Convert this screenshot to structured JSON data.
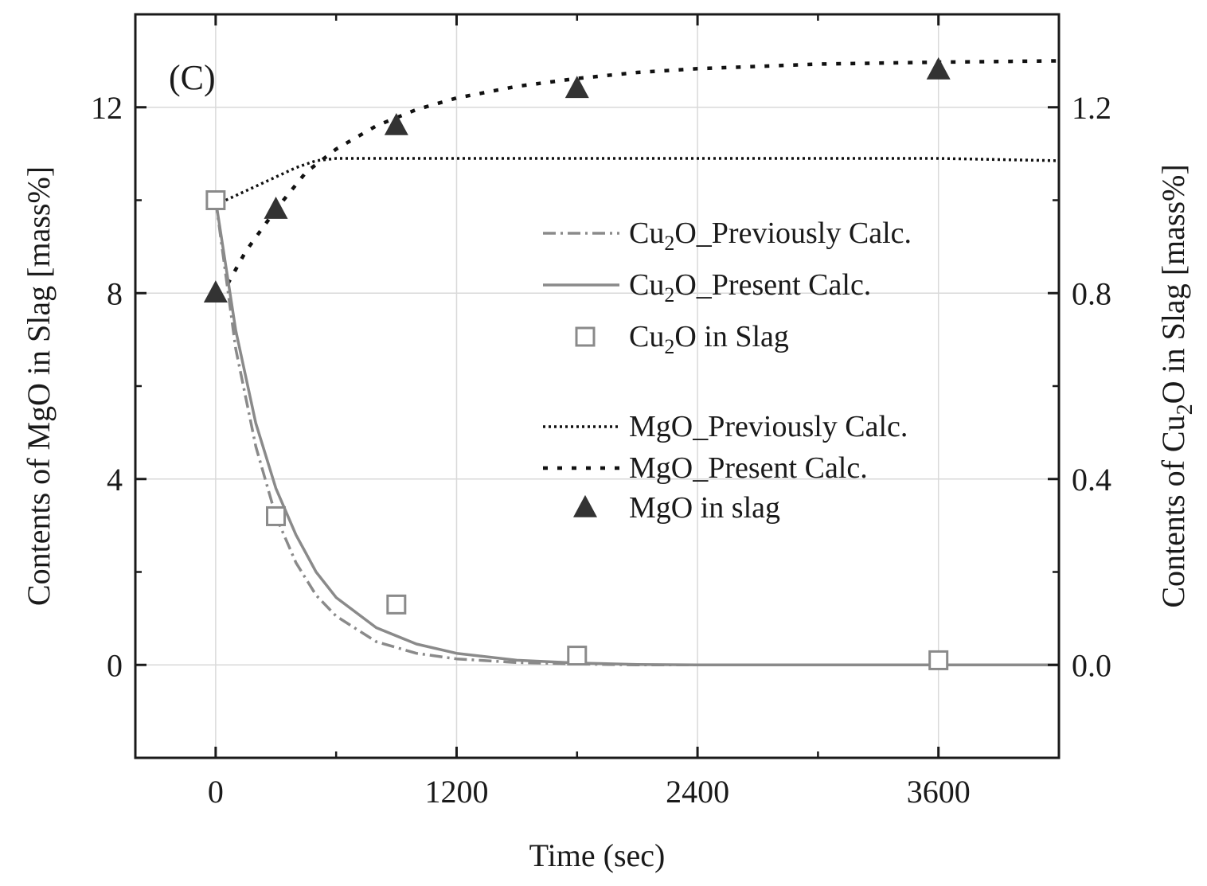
{
  "chart_data": {
    "type": "line",
    "panel_label": "(C)",
    "xlabel": "Time (sec)",
    "ylabel_left": "Contents of MgO in Slag [mass%]",
    "ylabel_right": {
      "prefix": "Contents of Cu",
      "sub": "2",
      "suffix": "O in Slag [mass%]"
    },
    "x_range": [
      -400,
      4200
    ],
    "y_left_range": [
      -2,
      14
    ],
    "y_right_range": [
      -0.2,
      1.4
    ],
    "x_ticks": [
      0,
      1200,
      2400,
      3600
    ],
    "x_tick_labels": [
      "0",
      "1200",
      "2400",
      "3600"
    ],
    "y_left_ticks": [
      0,
      4,
      8,
      12
    ],
    "y_left_tick_labels": [
      "0",
      "4",
      "8",
      "12"
    ],
    "y_right_ticks": [
      0.0,
      0.4,
      0.8,
      1.2
    ],
    "y_right_tick_labels": [
      "0.0",
      "0.4",
      "0.8",
      "1.2"
    ],
    "grid": true,
    "legend_position": "center-right",
    "series": [
      {
        "id": "cu2o-prev",
        "name": {
          "prefix": "Cu",
          "sub": "2",
          "suffix": "O_Previously Calc."
        },
        "axis": "right",
        "style": "dashdot",
        "color": "#8a8a8a",
        "x": [
          0,
          100,
          200,
          300,
          400,
          500,
          600,
          800,
          1000,
          1200,
          1500,
          1800,
          2100,
          2400,
          3000,
          3600,
          4200
        ],
        "values": [
          1.0,
          0.68,
          0.47,
          0.32,
          0.22,
          0.15,
          0.105,
          0.05,
          0.025,
          0.013,
          0.005,
          0.002,
          0.0,
          0.0,
          0.0,
          0.0,
          0.0
        ]
      },
      {
        "id": "cu2o-present",
        "name": {
          "prefix": "Cu",
          "sub": "2",
          "suffix": "O_Present Calc."
        },
        "axis": "right",
        "style": "solid",
        "color": "#8a8a8a",
        "x": [
          0,
          100,
          200,
          300,
          400,
          500,
          600,
          800,
          1000,
          1200,
          1500,
          1800,
          2100,
          2400,
          3000,
          3600,
          4200
        ],
        "values": [
          1.0,
          0.72,
          0.52,
          0.38,
          0.28,
          0.2,
          0.145,
          0.08,
          0.045,
          0.025,
          0.01,
          0.004,
          0.001,
          0.0,
          0.0,
          0.0,
          0.0
        ]
      },
      {
        "id": "cu2o-slag",
        "name": {
          "prefix": "Cu",
          "sub": "2",
          "suffix": "O in Slag"
        },
        "axis": "right",
        "style": "open-square",
        "color": "#8a8a8a",
        "x": [
          0,
          300,
          900,
          1800,
          3600
        ],
        "values": [
          1.0,
          0.32,
          0.13,
          0.02,
          0.01
        ]
      },
      {
        "id": "mgo-prev",
        "name": {
          "prefix": "MgO_Previously Calc.",
          "sub": "",
          "suffix": ""
        },
        "axis": "left",
        "style": "dotted",
        "color": "#111111",
        "x": [
          0,
          100,
          200,
          300,
          400,
          500,
          600,
          800,
          1200,
          1800,
          2400,
          3600,
          4200
        ],
        "values": [
          9.9,
          10.1,
          10.3,
          10.5,
          10.7,
          10.85,
          10.9,
          10.9,
          10.9,
          10.9,
          10.9,
          10.9,
          10.85
        ]
      },
      {
        "id": "mgo-present",
        "name": {
          "prefix": "MgO_Present Calc.",
          "sub": "",
          "suffix": ""
        },
        "axis": "left",
        "style": "dashed",
        "color": "#111111",
        "x": [
          60,
          150,
          300,
          450,
          600,
          800,
          1000,
          1200,
          1500,
          1800,
          2100,
          2400,
          3000,
          3600,
          4200
        ],
        "values": [
          8.2,
          8.9,
          9.8,
          10.6,
          11.1,
          11.6,
          11.95,
          12.2,
          12.45,
          12.62,
          12.75,
          12.83,
          12.93,
          12.97,
          13.0
        ]
      },
      {
        "id": "mgo-slag",
        "name": {
          "prefix": "MgO in slag",
          "sub": "",
          "suffix": ""
        },
        "axis": "left",
        "style": "filled-triangle",
        "color": "#333333",
        "x": [
          0,
          300,
          900,
          1800,
          3600
        ],
        "values": [
          8.0,
          9.8,
          11.6,
          12.4,
          12.8
        ]
      }
    ]
  }
}
